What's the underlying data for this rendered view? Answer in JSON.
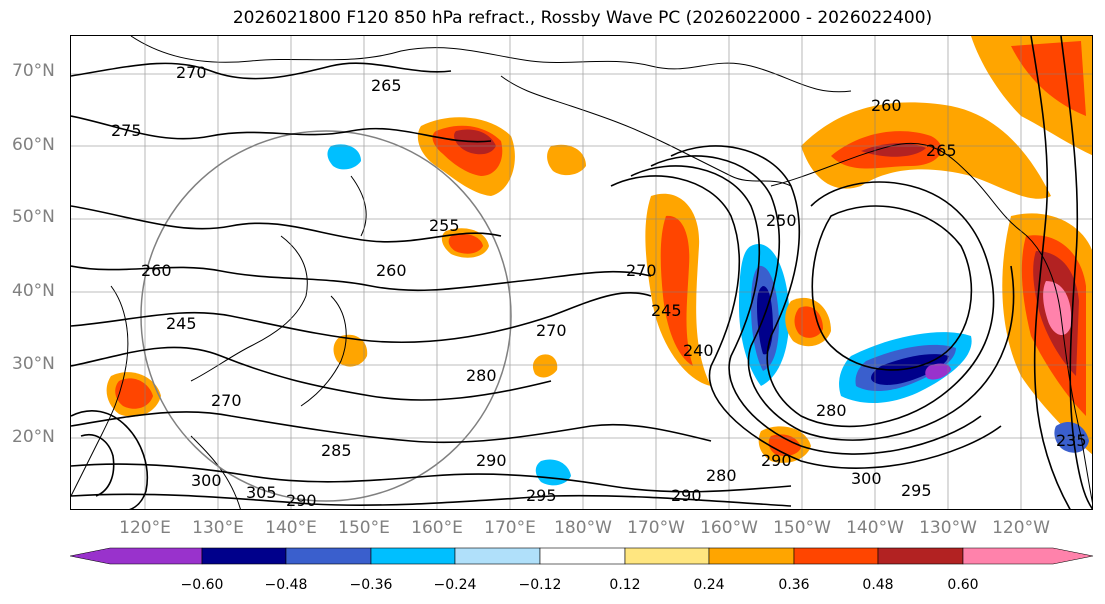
{
  "title": "2026021800 F120 850 hPa refract., Rossby Wave PC (2026022000 - 2026022400)",
  "map": {
    "lat_labels": [
      "70°N",
      "60°N",
      "50°N",
      "40°N",
      "30°N",
      "20°N"
    ],
    "lon_labels": [
      "120°E",
      "130°E",
      "140°E",
      "150°E",
      "160°E",
      "170°E",
      "180°W",
      "170°W",
      "160°W",
      "150°W",
      "140°W",
      "130°W",
      "120°W"
    ],
    "contour_labels": [
      "270",
      "265",
      "275",
      "260",
      "255",
      "260",
      "245",
      "270",
      "270",
      "280",
      "285",
      "290",
      "300",
      "305",
      "290",
      "295",
      "280",
      "290",
      "300",
      "295",
      "250",
      "260",
      "265",
      "270",
      "245",
      "240",
      "235",
      "280",
      "290"
    ],
    "colors": {
      "ocean_bg": "#ffffff",
      "grid": "#808080",
      "coast": "#000000"
    }
  },
  "colorbar": {
    "tick_labels": [
      "−0.60",
      "−0.48",
      "−0.36",
      "−0.24",
      "−0.12",
      "0.12",
      "0.24",
      "0.36",
      "0.48",
      "0.60"
    ],
    "bins": [
      {
        "color": "#9932cc"
      },
      {
        "color": "#00008b"
      },
      {
        "color": "#3a5fcd"
      },
      {
        "color": "#00bfff"
      },
      {
        "color": "#b0e0fa"
      },
      {
        "color": "#ffffff"
      },
      {
        "color": "#ffe680"
      },
      {
        "color": "#ffa500"
      },
      {
        "color": "#ff4500"
      },
      {
        "color": "#b22222"
      },
      {
        "color": "#ff82ab"
      }
    ]
  }
}
